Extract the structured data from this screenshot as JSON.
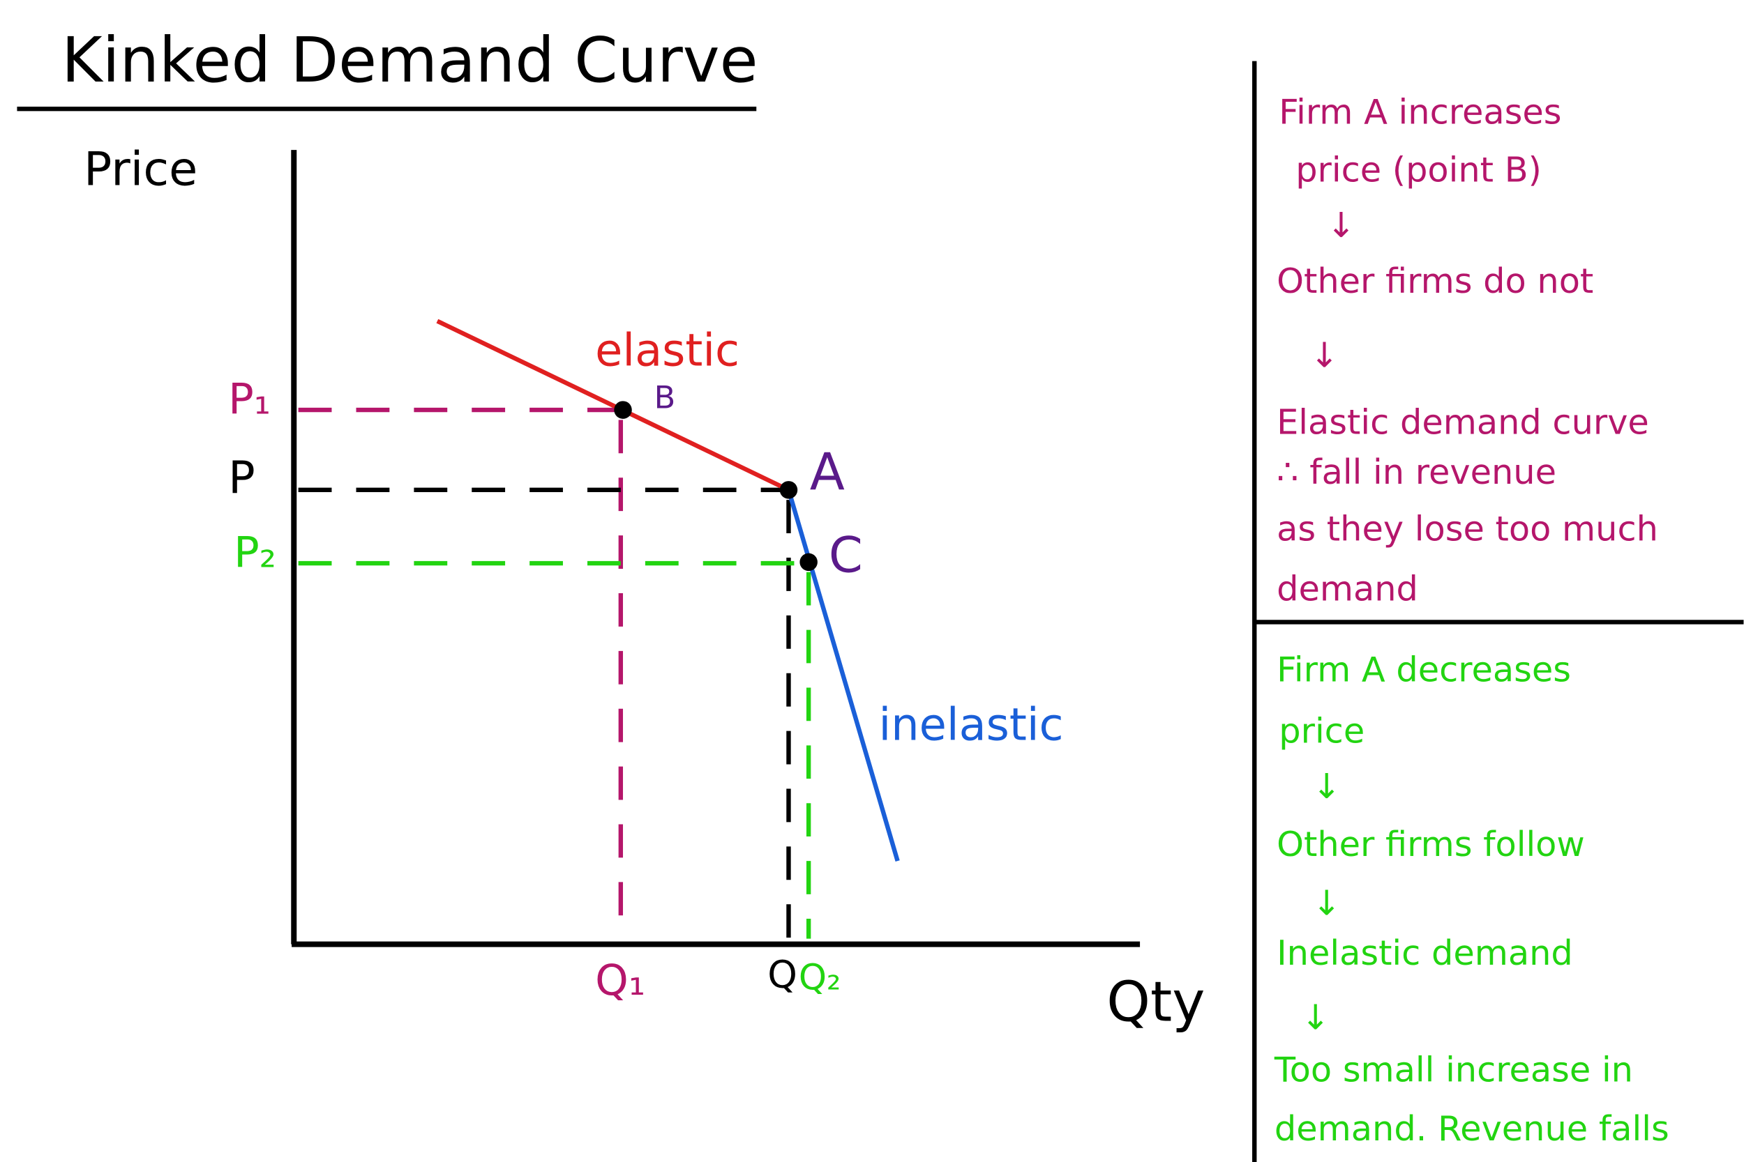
{
  "title": "Kinked Demand Curve",
  "graph": {
    "y_axis_label": "Price",
    "x_axis_label": "Qty",
    "price_labels": {
      "p1": "P₁",
      "p": "P",
      "p2": "P₂"
    },
    "quantity_labels": {
      "q1": "Q₁",
      "q": "Q",
      "q2": "Q₂"
    },
    "points": {
      "a": "A",
      "b": "B",
      "c": "C"
    },
    "segments": {
      "elastic": "elastic",
      "inelastic": "inelastic"
    }
  },
  "panels": {
    "increase": {
      "lines": [
        "Firm A increases",
        "price (point B)",
        "Other firms do not",
        "Elastic demand curve",
        "∴ fall in revenue",
        "as they lose too much",
        "demand"
      ]
    },
    "decrease": {
      "lines": [
        "Firm A decreases",
        "price",
        "Other firms follow",
        "Inelastic demand",
        "Too small increase in",
        "demand. Revenue falls"
      ]
    }
  }
}
